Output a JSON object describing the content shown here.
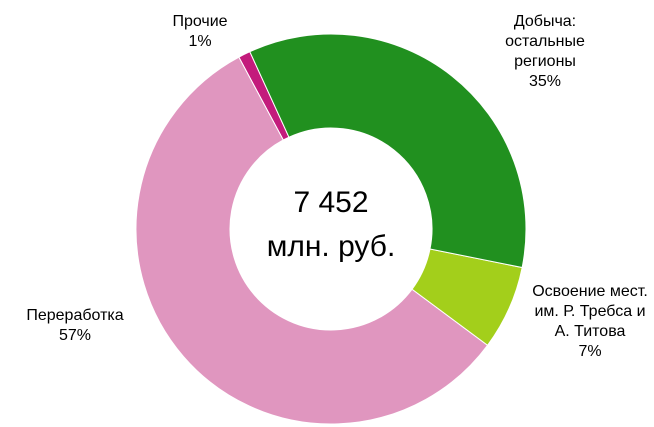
{
  "chart_data": {
    "type": "donut",
    "categories": [
      "Добыча: остальные регионы",
      "Освоение мест. им. Р. Требса и А. Титова",
      "Переработка",
      "Прочие"
    ],
    "values": [
      35,
      7,
      57,
      1
    ],
    "value_labels": [
      "35%",
      "7%",
      "57%",
      "1%"
    ],
    "colors": [
      "#21901f",
      "#a3cf1b",
      "#e096bf",
      "#c31b7c"
    ],
    "center_label": [
      "7 452",
      "млн. руб."
    ]
  }
}
